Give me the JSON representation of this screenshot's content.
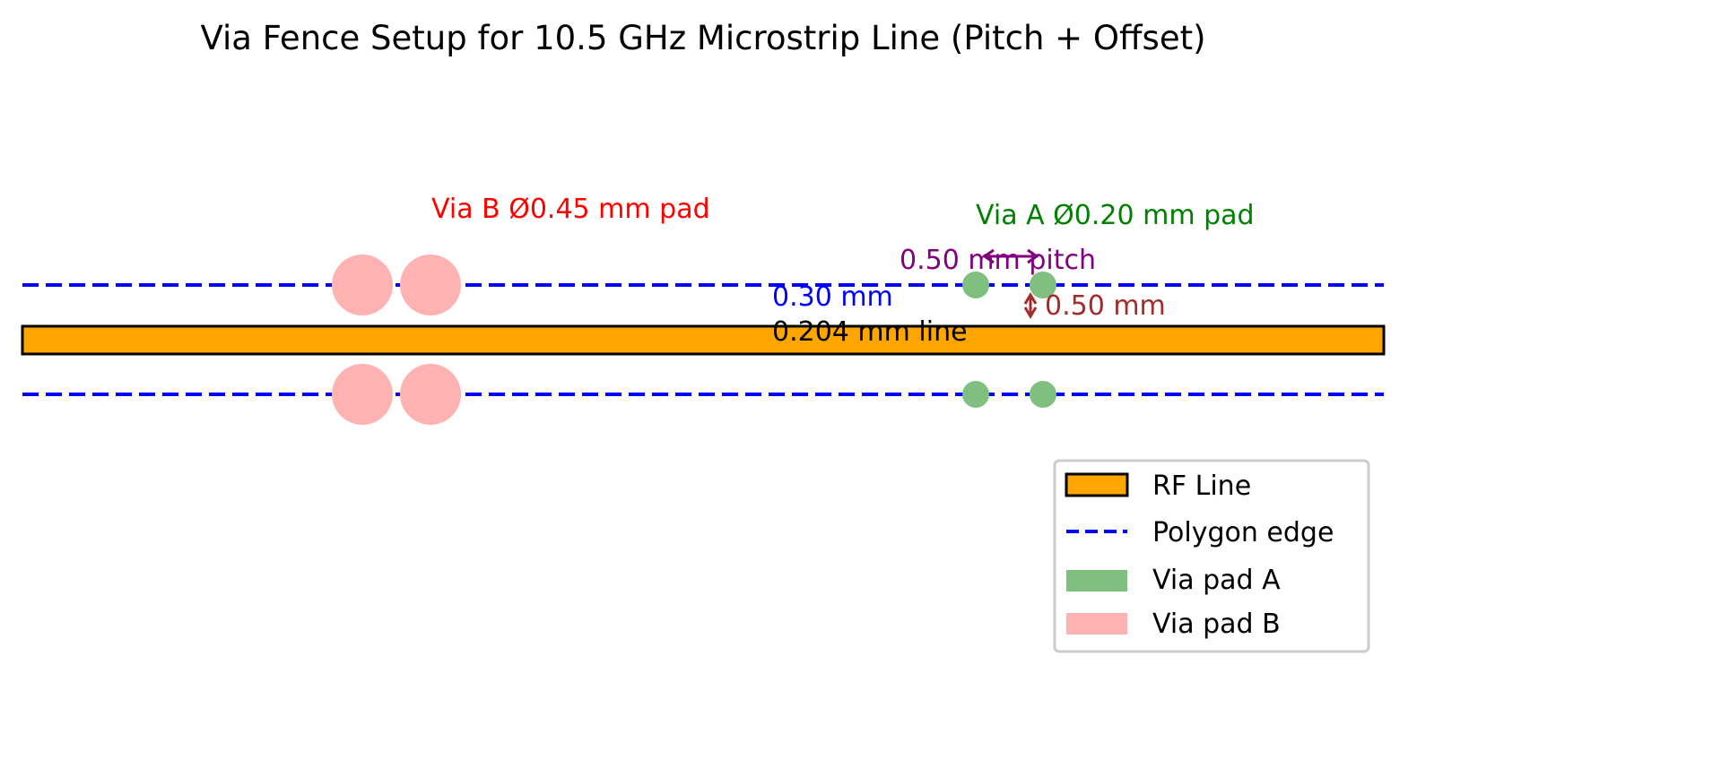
{
  "title": "Via Fence Setup for 10.5 GHz Microstrip Line (Pitch + Offset)",
  "colors": {
    "rf_line": "#ffa500",
    "polygon_edge": "#0000ff",
    "via_a": "#7fbf7f",
    "via_b": "#ffb2b2",
    "via_a_label": "#008000",
    "via_b_label": "#ff0000",
    "pitch": "#800080",
    "offset": "#a52a2a",
    "spacing": "#0000ff"
  },
  "annotations": {
    "via_b": "Via B Ø0.45 mm pad",
    "via_a": "Via A Ø0.20 mm pad",
    "pitch": "0.50 mm pitch",
    "spacing": "0.30 mm",
    "line_width": "0.204 mm line",
    "offset": "0.50 mm"
  },
  "legend": {
    "items": [
      {
        "label": "RF Line",
        "kind": "patch-outlined"
      },
      {
        "label": "Polygon edge",
        "kind": "dashed-line"
      },
      {
        "label": "Via pad A",
        "kind": "patch"
      },
      {
        "label": "Via pad B",
        "kind": "patch"
      }
    ]
  }
}
